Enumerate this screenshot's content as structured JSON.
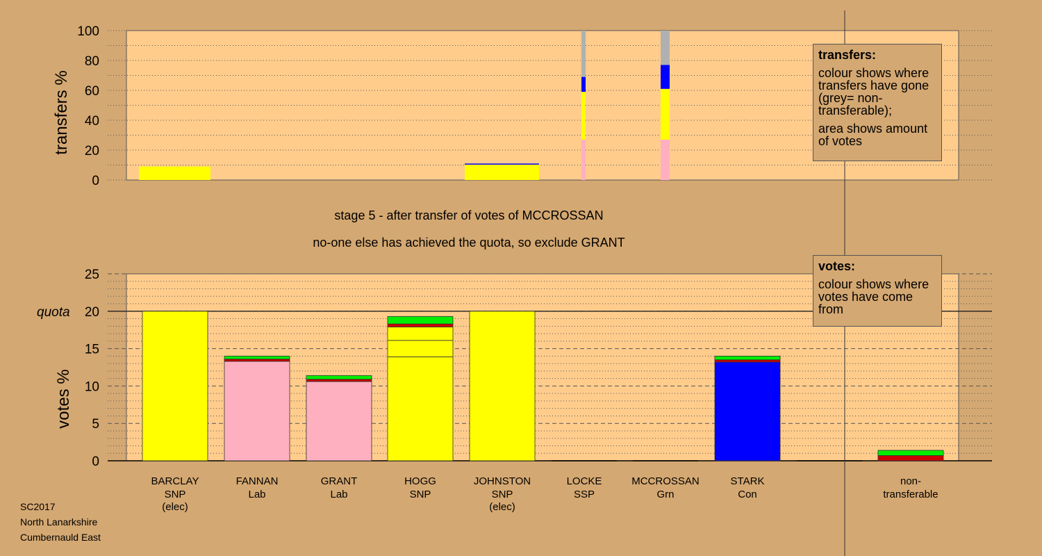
{
  "stage_text": "stage 5 - after transfer of votes of MCCROSSAN",
  "action_text": "no-one else has achieved the quota, so exclude GRANT",
  "info": [
    "SC2017",
    "North Lanarkshire",
    "Cumbernauld East"
  ],
  "transfers_note": {
    "heading": "transfers:",
    "lines": [
      "colour shows where transfers have gone (grey= non-transferable);",
      "area shows amount of votes"
    ]
  },
  "votes_note": {
    "heading": "votes:",
    "lines": [
      "colour shows where votes have come from"
    ]
  },
  "colors": {
    "SNP": "#ffff00",
    "Lab": "#ffb0c0",
    "Con": "#0000ff",
    "Grn": "#00ee00",
    "SSP": "#cc0000",
    "nontransferable": "#b0b0b0",
    "plot_bg": "#ffcc8c",
    "page_bg": "#d4a872"
  },
  "chart_data": [
    {
      "type": "bar",
      "name": "transfers",
      "ylabel": "transfers %",
      "ylim": [
        0,
        100
      ],
      "yticks": [
        0,
        20,
        40,
        60,
        80,
        100
      ],
      "bars": [
        {
          "candidate": "BARCLAY",
          "segments": [
            {
              "party": "SNP",
              "from": 0,
              "to": 9
            }
          ]
        },
        {
          "candidate": "JOHNSTON",
          "segments": [
            {
              "party": "SNP",
              "from": 0,
              "to": 10.3
            },
            {
              "party": "Con",
              "from": 10.3,
              "to": 11
            }
          ]
        },
        {
          "candidate": "LOCKE",
          "segments": [
            {
              "party": "Lab",
              "from": 0,
              "to": 27
            },
            {
              "party": "SNP",
              "from": 27,
              "to": 59
            },
            {
              "party": "Con",
              "from": 59,
              "to": 69
            },
            {
              "party": "nontransferable",
              "from": 69,
              "to": 100
            }
          ]
        },
        {
          "candidate": "MCCROSSAN",
          "segments": [
            {
              "party": "Lab",
              "from": 0,
              "to": 27
            },
            {
              "party": "SNP",
              "from": 27,
              "to": 61
            },
            {
              "party": "Con",
              "from": 61,
              "to": 77
            },
            {
              "party": "nontransferable",
              "from": 77,
              "to": 100
            }
          ]
        }
      ]
    },
    {
      "type": "bar",
      "name": "votes",
      "ylabel": "votes %",
      "ylim": [
        0,
        25
      ],
      "yticks": [
        0,
        5,
        10,
        15,
        20,
        25
      ],
      "quota": 20,
      "quota_label": "quota",
      "categories": [
        {
          "name": "BARCLAY",
          "party": "SNP",
          "status": "(elec)"
        },
        {
          "name": "FANNAN",
          "party": "Lab",
          "status": ""
        },
        {
          "name": "GRANT",
          "party": "Lab",
          "status": ""
        },
        {
          "name": "HOGG",
          "party": "SNP",
          "status": ""
        },
        {
          "name": "JOHNSTON",
          "party": "SNP",
          "status": "(elec)"
        },
        {
          "name": "LOCKE",
          "party": "SSP",
          "status": ""
        },
        {
          "name": "MCCROSSAN",
          "party": "Grn",
          "status": ""
        },
        {
          "name": "STARK",
          "party": "Con",
          "status": ""
        },
        {
          "name": "non-",
          "party": "transferable",
          "status": ""
        }
      ],
      "stacks": [
        [
          {
            "party": "SNP",
            "value": 20
          }
        ],
        [
          {
            "party": "Lab",
            "value": 13.3
          },
          {
            "party": "SSP",
            "value": 0.3
          },
          {
            "party": "Grn",
            "value": 0.4
          }
        ],
        [
          {
            "party": "Lab",
            "value": 10.6
          },
          {
            "party": "SSP",
            "value": 0.3
          },
          {
            "party": "Grn",
            "value": 0.5
          }
        ],
        [
          {
            "party": "SNP",
            "value": 13.9
          },
          {
            "party": "SNP",
            "value": 2.2
          },
          {
            "party": "SNP",
            "value": 1.8
          },
          {
            "party": "SSP",
            "value": 0.4
          },
          {
            "party": "Grn",
            "value": 1.0
          }
        ],
        [
          {
            "party": "SNP",
            "value": 20
          }
        ],
        [],
        [],
        [
          {
            "party": "Con",
            "value": 13.2
          },
          {
            "party": "SSP",
            "value": 0.3
          },
          {
            "party": "Grn",
            "value": 0.5
          }
        ],
        [
          {
            "party": "SSP",
            "value": 0.7
          },
          {
            "party": "Grn",
            "value": 0.7
          }
        ]
      ]
    }
  ]
}
